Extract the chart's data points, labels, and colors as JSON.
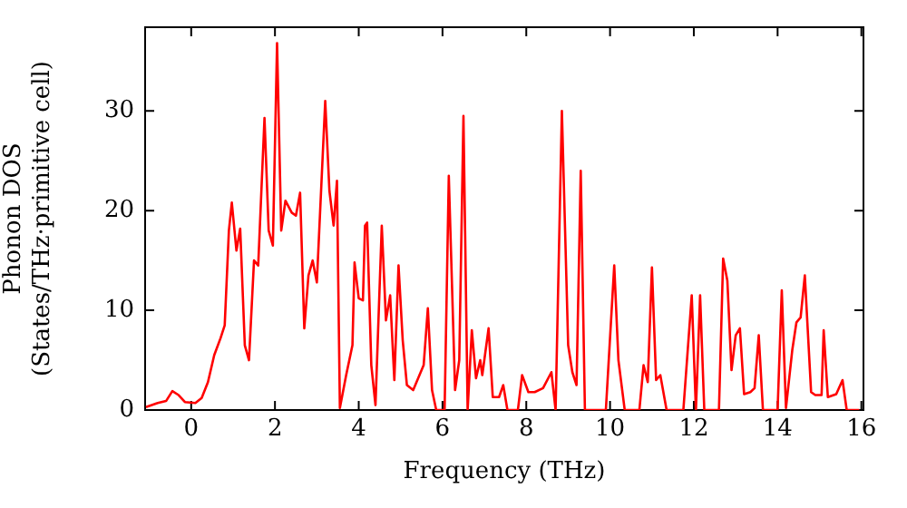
{
  "chart_data": {
    "type": "line",
    "xlabel": "Frequency (THz)",
    "ylabel": "Phonon DOS\n(States/THz·primitive cell)",
    "xlim": [
      -1.1,
      16.05
    ],
    "xticks": [
      0,
      2,
      4,
      6,
      8,
      10,
      12,
      14,
      16
    ],
    "ylim": [
      0,
      38.4
    ],
    "yticks": [
      0,
      10,
      20,
      30
    ],
    "grid": false,
    "legend": false,
    "marker": "none",
    "line_style": "solid",
    "series": [
      {
        "color": "#ff0000",
        "x": [
          -1.08,
          -0.8,
          -0.6,
          -0.45,
          -0.3,
          -0.15,
          0.1,
          0.25,
          0.4,
          0.55,
          0.7,
          0.8,
          0.9,
          0.97,
          1.08,
          1.17,
          1.28,
          1.38,
          1.5,
          1.6,
          1.75,
          1.85,
          1.95,
          2.05,
          2.15,
          2.25,
          2.4,
          2.5,
          2.6,
          2.7,
          2.8,
          2.9,
          3.0,
          3.2,
          3.3,
          3.4,
          3.48,
          3.55,
          3.7,
          3.85,
          3.9,
          4.0,
          4.1,
          4.15,
          4.2,
          4.3,
          4.4,
          4.55,
          4.65,
          4.75,
          4.85,
          4.95,
          5.05,
          5.15,
          5.3,
          5.45,
          5.55,
          5.65,
          5.75,
          5.85,
          6.05,
          6.15,
          6.3,
          6.4,
          6.5,
          6.6,
          6.7,
          6.8,
          6.9,
          6.95,
          7.1,
          7.2,
          7.35,
          7.45,
          7.55,
          7.8,
          7.9,
          8.05,
          8.2,
          8.4,
          8.6,
          8.7,
          8.85,
          9.0,
          9.1,
          9.2,
          9.3,
          9.4,
          9.9,
          10.1,
          10.2,
          10.35,
          10.7,
          10.8,
          10.9,
          11.0,
          11.1,
          11.2,
          11.35,
          11.75,
          11.95,
          12.05,
          12.15,
          12.25,
          12.6,
          12.7,
          12.8,
          12.9,
          13.0,
          13.1,
          13.2,
          13.35,
          13.45,
          13.55,
          13.65,
          14.0,
          14.1,
          14.2,
          14.35,
          14.45,
          14.55,
          14.65,
          14.8,
          14.9,
          15.05,
          15.1,
          15.2,
          15.4,
          15.55,
          15.65,
          15.95
        ],
        "values": [
          0.3,
          0.7,
          0.9,
          1.9,
          1.5,
          0.8,
          0.7,
          1.2,
          2.8,
          5.5,
          7.2,
          8.5,
          18,
          20.8,
          16,
          18.2,
          6.5,
          5,
          15,
          14.5,
          29.3,
          18,
          16.5,
          36.8,
          18,
          21,
          19.8,
          19.5,
          21.8,
          8.2,
          13.5,
          15,
          12.8,
          31,
          22,
          18.5,
          23,
          0.2,
          3.5,
          6.5,
          14.8,
          11.2,
          11,
          18.5,
          18.8,
          4.5,
          0.5,
          18.5,
          9,
          11.5,
          3,
          14.5,
          7,
          2.5,
          2,
          3.5,
          4.5,
          10.2,
          2,
          0,
          0,
          23.5,
          2,
          5,
          29.5,
          0,
          8,
          3.2,
          5,
          3.5,
          8.2,
          1.3,
          1.3,
          2.5,
          0,
          0,
          3.5,
          1.8,
          1.8,
          2.2,
          3.8,
          0,
          30,
          6.5,
          3.8,
          2.5,
          24,
          0,
          0,
          14.5,
          5,
          0,
          0,
          4.5,
          2.8,
          14.3,
          3,
          3.5,
          0,
          0,
          11.5,
          0,
          11.5,
          0,
          0,
          15.2,
          13,
          4,
          7.5,
          8.2,
          1.6,
          1.8,
          2.2,
          7.5,
          0,
          0,
          12,
          0.2,
          6,
          8.8,
          9.3,
          13.5,
          1.8,
          1.5,
          1.5,
          8,
          1.3,
          1.6,
          3,
          0,
          0
        ]
      }
    ]
  }
}
